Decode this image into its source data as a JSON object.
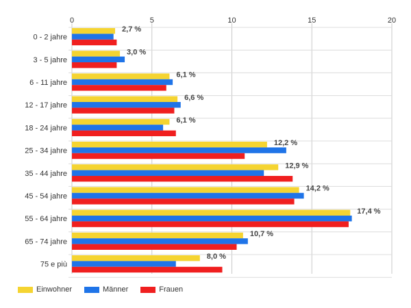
{
  "chart_data": {
    "type": "bar",
    "orientation": "horizontal",
    "title": "",
    "xlabel": "",
    "ylabel": "",
    "xlim": [
      0,
      20
    ],
    "x_ticks": [
      "0",
      "5",
      "10",
      "15",
      "20"
    ],
    "x_axis_position": "top",
    "grid": true,
    "legend_position": "bottom-left",
    "categories": [
      "0 - 2 jahre",
      "3 - 5 jahre",
      "6 - 11 jahre",
      "12 - 17 jahre",
      "18 - 24 jahre",
      "25 - 34 jahre",
      "35 - 44 jahre",
      "45 - 54 jahre",
      "55 - 64 jahre",
      "65 - 74 jahre",
      "75 e più"
    ],
    "series": [
      {
        "name": "Einwohner",
        "color": "#f5d431",
        "values": [
          2.7,
          3.0,
          6.1,
          6.6,
          6.1,
          12.2,
          12.9,
          14.2,
          17.4,
          10.7,
          8.0
        ]
      },
      {
        "name": "Männer",
        "color": "#1f74e8",
        "values": [
          2.6,
          3.3,
          6.3,
          6.8,
          5.7,
          13.4,
          12.0,
          14.5,
          17.5,
          11.0,
          6.5
        ]
      },
      {
        "name": "Frauen",
        "color": "#f01f1f",
        "values": [
          2.8,
          2.8,
          5.9,
          6.4,
          6.5,
          10.8,
          13.8,
          13.9,
          17.3,
          10.3,
          9.4
        ]
      }
    ],
    "data_labels": [
      "2,7 %",
      "3,0 %",
      "6,1 %",
      "6,6 %",
      "6,1 %",
      "12,2 %",
      "12,9 %",
      "14,2 %",
      "17,4 %",
      "10,7 %",
      "8,0 %"
    ]
  }
}
